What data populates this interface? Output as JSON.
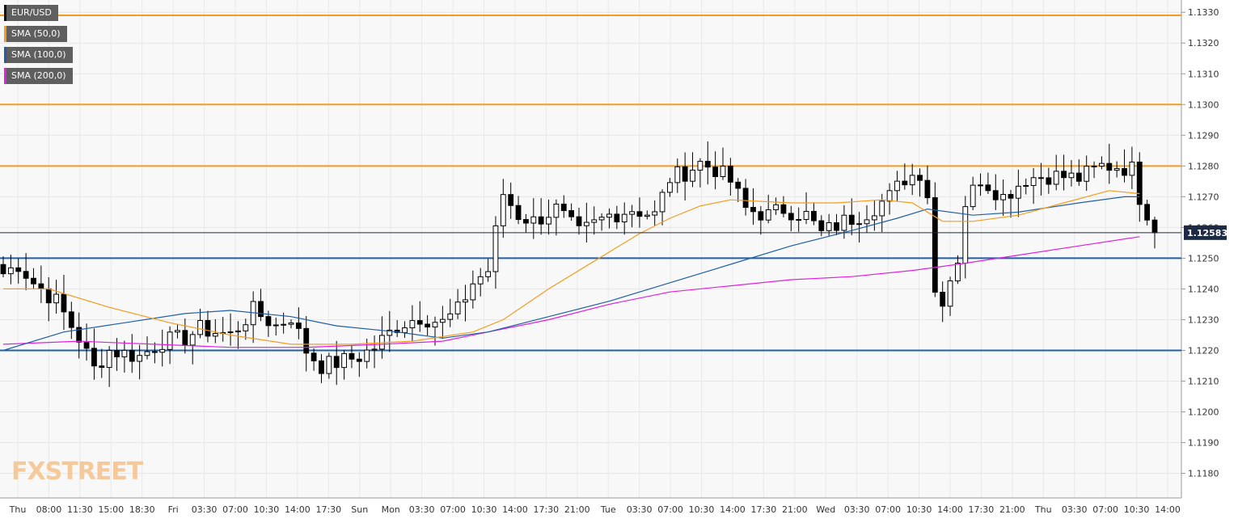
{
  "chart_data": {
    "type": "candlestick",
    "symbol": "EUR/USD",
    "current_price": "1.12583",
    "ylim": [
      1.1172,
      1.1334
    ],
    "y_ticks": [
      "1.1180",
      "1.1190",
      "1.1200",
      "1.1210",
      "1.1220",
      "1.1230",
      "1.1240",
      "1.1250",
      "1.1260",
      "1.1270",
      "1.1280",
      "1.1290",
      "1.1300",
      "1.1310",
      "1.1320",
      "1.1330"
    ],
    "x_ticks": [
      "Thu",
      "08:00",
      "11:30",
      "15:00",
      "18:30",
      "Fri",
      "03:30",
      "07:00",
      "10:30",
      "14:00",
      "17:30",
      "Sun",
      "Mon",
      "03:30",
      "07:00",
      "10:30",
      "14:00",
      "17:30",
      "21:00",
      "Tue",
      "03:30",
      "07:00",
      "10:30",
      "14:00",
      "17:30",
      "21:00",
      "Wed",
      "03:30",
      "07:00",
      "10:30",
      "14:00",
      "17:30",
      "21:00",
      "Thu",
      "03:30",
      "07:00",
      "10:30",
      "14:00"
    ],
    "grid": true,
    "legend": [
      {
        "name": "EUR/USD",
        "color": "#000000"
      },
      {
        "name": "SMA (50,0)",
        "color": "#f39c1f"
      },
      {
        "name": "SMA (100,0)",
        "color": "#1f5fa8"
      },
      {
        "name": "SMA (200,0)",
        "color": "#e020e0"
      }
    ],
    "horizontal_lines": [
      {
        "value": 1.1329,
        "color": "#f39c1f"
      },
      {
        "value": 1.13,
        "color": "#f39c1f"
      },
      {
        "value": 1.128,
        "color": "#f39c1f"
      },
      {
        "value": 1.125,
        "color": "#1f5fa8"
      },
      {
        "value": 1.122,
        "color": "#1f5fa8"
      }
    ],
    "price_path": [
      [
        0,
        1.1245
      ],
      [
        2,
        1.1248
      ],
      [
        4,
        1.1242
      ],
      [
        7,
        1.1236
      ],
      [
        10,
        1.1224
      ],
      [
        12,
        1.1214
      ],
      [
        14,
        1.122
      ],
      [
        18,
        1.1218
      ],
      [
        21,
        1.1223
      ],
      [
        24,
        1.1224
      ],
      [
        26,
        1.1227
      ],
      [
        30,
        1.1225
      ],
      [
        33,
        1.1233
      ],
      [
        36,
        1.1228
      ],
      [
        38,
        1.1231
      ],
      [
        40,
        1.122
      ],
      [
        42,
        1.1215
      ],
      [
        44,
        1.1216
      ],
      [
        47,
        1.1218
      ],
      [
        49,
        1.1221
      ],
      [
        52,
        1.1228
      ],
      [
        55,
        1.1231
      ],
      [
        58,
        1.1229
      ],
      [
        60,
        1.1233
      ],
      [
        62,
        1.1242
      ],
      [
        64,
        1.1246
      ],
      [
        66,
        1.1271
      ],
      [
        68,
        1.1264
      ],
      [
        70,
        1.1262
      ],
      [
        73,
        1.1266
      ],
      [
        76,
        1.1258
      ],
      [
        80,
        1.1264
      ],
      [
        83,
        1.1266
      ],
      [
        86,
        1.1264
      ],
      [
        88,
        1.1276
      ],
      [
        90,
        1.1278
      ],
      [
        92,
        1.1281
      ],
      [
        94,
        1.1279
      ],
      [
        96,
        1.1275
      ],
      [
        98,
        1.1266
      ],
      [
        101,
        1.1264
      ],
      [
        103,
        1.1266
      ],
      [
        106,
        1.1264
      ],
      [
        108,
        1.1258
      ],
      [
        111,
        1.1262
      ],
      [
        114,
        1.1265
      ],
      [
        117,
        1.127
      ],
      [
        119,
        1.1276
      ],
      [
        121,
        1.1278
      ],
      [
        122,
        1.1271
      ],
      [
        123,
        1.1239
      ],
      [
        124,
        1.1237
      ],
      [
        126,
        1.125
      ],
      [
        127,
        1.1268
      ],
      [
        129,
        1.1276
      ],
      [
        132,
        1.127
      ],
      [
        135,
        1.1276
      ],
      [
        138,
        1.1277
      ],
      [
        142,
        1.1276
      ],
      [
        145,
        1.128
      ],
      [
        147,
        1.128
      ],
      [
        149,
        1.1279
      ],
      [
        150,
        1.127
      ],
      [
        151,
        1.1265
      ],
      [
        152,
        1.1258
      ]
    ],
    "sma50": [
      [
        0,
        1.124
      ],
      [
        6,
        1.124
      ],
      [
        14,
        1.1234
      ],
      [
        22,
        1.1229
      ],
      [
        30,
        1.1225
      ],
      [
        38,
        1.1222
      ],
      [
        46,
        1.1222
      ],
      [
        54,
        1.1223
      ],
      [
        62,
        1.1226
      ],
      [
        66,
        1.123
      ],
      [
        72,
        1.124
      ],
      [
        78,
        1.1249
      ],
      [
        84,
        1.1258
      ],
      [
        88,
        1.1263
      ],
      [
        92,
        1.1267
      ],
      [
        96,
        1.1269
      ],
      [
        104,
        1.1268
      ],
      [
        110,
        1.1268
      ],
      [
        116,
        1.1269
      ],
      [
        120,
        1.1268
      ],
      [
        124,
        1.1262
      ],
      [
        128,
        1.1262
      ],
      [
        134,
        1.1264
      ],
      [
        140,
        1.1268
      ],
      [
        146,
        1.1272
      ],
      [
        150,
        1.1271
      ]
    ],
    "sma100": [
      [
        0,
        1.122
      ],
      [
        8,
        1.1226
      ],
      [
        16,
        1.1229
      ],
      [
        24,
        1.1232
      ],
      [
        30,
        1.1233
      ],
      [
        38,
        1.1231
      ],
      [
        44,
        1.1228
      ],
      [
        52,
        1.1226
      ],
      [
        58,
        1.1224
      ],
      [
        64,
        1.1226
      ],
      [
        72,
        1.1231
      ],
      [
        80,
        1.1236
      ],
      [
        88,
        1.1242
      ],
      [
        96,
        1.1248
      ],
      [
        104,
        1.1254
      ],
      [
        112,
        1.1259
      ],
      [
        118,
        1.1263
      ],
      [
        122,
        1.1266
      ],
      [
        128,
        1.1264
      ],
      [
        134,
        1.1265
      ],
      [
        142,
        1.1268
      ],
      [
        148,
        1.127
      ],
      [
        150,
        1.127
      ]
    ],
    "sma200": [
      [
        0,
        1.1222
      ],
      [
        10,
        1.1223
      ],
      [
        20,
        1.1222
      ],
      [
        30,
        1.1221
      ],
      [
        40,
        1.1221
      ],
      [
        50,
        1.1222
      ],
      [
        58,
        1.1223
      ],
      [
        64,
        1.1226
      ],
      [
        72,
        1.123
      ],
      [
        80,
        1.1235
      ],
      [
        88,
        1.1239
      ],
      [
        96,
        1.1241
      ],
      [
        104,
        1.1243
      ],
      [
        112,
        1.1244
      ],
      [
        120,
        1.1246
      ],
      [
        126,
        1.1248
      ],
      [
        134,
        1.1251
      ],
      [
        142,
        1.1254
      ],
      [
        150,
        1.1257
      ]
    ]
  },
  "logo": {
    "part1": "FX",
    "part2": "STREET"
  }
}
